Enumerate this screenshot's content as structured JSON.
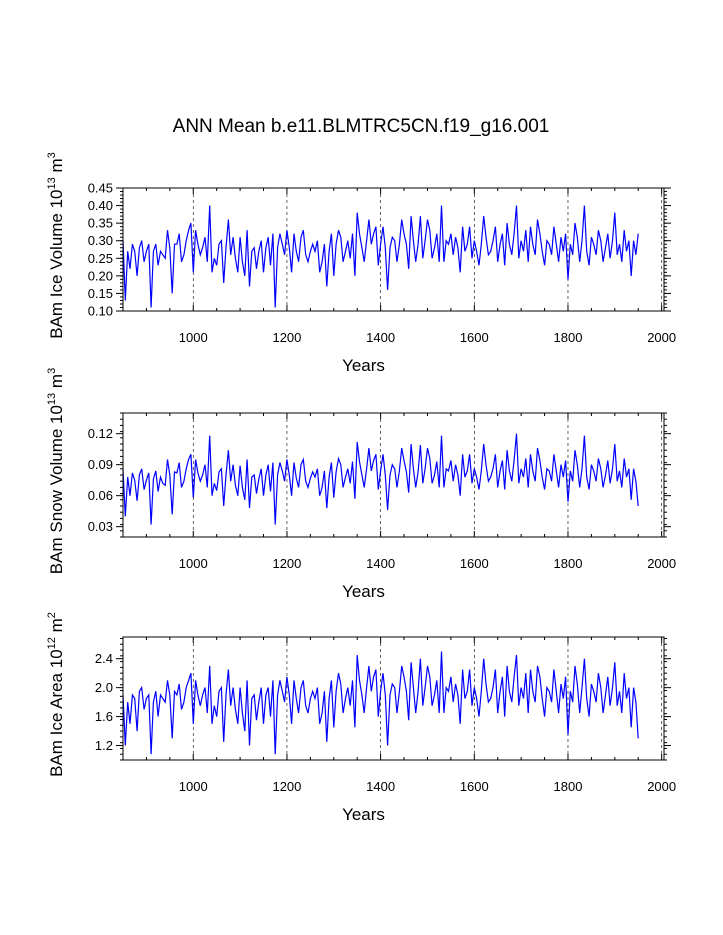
{
  "page": {
    "title": "ANN Mean b.e11.BLMTRC5CN.f19_g16.001"
  },
  "chart_data": [
    {
      "type": "line",
      "name": "ice-volume",
      "ylabel": "BAm Ice Volume 10",
      "ylabel_exp": "13",
      "ylabel_unit": "m",
      "ylabel_unit_exp": "3",
      "xlabel": "Years",
      "xlim": [
        850,
        2005
      ],
      "ylim": [
        0.1,
        0.45
      ],
      "x_ticks": [
        1000,
        1200,
        1400,
        1600,
        1800,
        2000
      ],
      "x_tick_labels": [
        "1000",
        "1200",
        "1400",
        "1600",
        "1800",
        "2000"
      ],
      "y_ticks": [
        0.1,
        0.15,
        0.2,
        0.25,
        0.3,
        0.35,
        0.4,
        0.45
      ],
      "y_tick_labels": [
        "0.10",
        "0.15",
        "0.20",
        "0.25",
        "0.30",
        "0.35",
        "0.40",
        "0.45"
      ],
      "grid_x": [
        1000,
        1200,
        1400,
        1600,
        1800,
        2000
      ],
      "series": [
        {
          "name": "BAm Ice Volume",
          "color": "#0000ff",
          "x_start": 850,
          "x_step": 5,
          "values": [
            0.3,
            0.13,
            0.27,
            0.22,
            0.29,
            0.27,
            0.2,
            0.28,
            0.3,
            0.24,
            0.27,
            0.29,
            0.11,
            0.27,
            0.29,
            0.23,
            0.27,
            0.26,
            0.25,
            0.33,
            0.28,
            0.15,
            0.29,
            0.29,
            0.32,
            0.24,
            0.26,
            0.3,
            0.33,
            0.35,
            0.21,
            0.33,
            0.29,
            0.26,
            0.28,
            0.31,
            0.24,
            0.4,
            0.21,
            0.25,
            0.23,
            0.29,
            0.3,
            0.18,
            0.28,
            0.36,
            0.26,
            0.31,
            0.25,
            0.21,
            0.31,
            0.24,
            0.2,
            0.33,
            0.17,
            0.27,
            0.28,
            0.22,
            0.27,
            0.3,
            0.21,
            0.28,
            0.31,
            0.23,
            0.32,
            0.11,
            0.28,
            0.32,
            0.29,
            0.26,
            0.33,
            0.28,
            0.21,
            0.32,
            0.27,
            0.24,
            0.31,
            0.33,
            0.26,
            0.24,
            0.27,
            0.29,
            0.27,
            0.3,
            0.21,
            0.24,
            0.29,
            0.17,
            0.27,
            0.32,
            0.2,
            0.29,
            0.33,
            0.31,
            0.24,
            0.27,
            0.3,
            0.25,
            0.32,
            0.2,
            0.38,
            0.32,
            0.28,
            0.24,
            0.3,
            0.36,
            0.29,
            0.32,
            0.34,
            0.23,
            0.29,
            0.34,
            0.28,
            0.16,
            0.28,
            0.31,
            0.3,
            0.24,
            0.29,
            0.36,
            0.32,
            0.29,
            0.22,
            0.37,
            0.3,
            0.24,
            0.29,
            0.37,
            0.25,
            0.3,
            0.36,
            0.33,
            0.25,
            0.28,
            0.32,
            0.24,
            0.4,
            0.24,
            0.3,
            0.29,
            0.32,
            0.26,
            0.31,
            0.28,
            0.21,
            0.34,
            0.27,
            0.29,
            0.34,
            0.25,
            0.3,
            0.27,
            0.23,
            0.29,
            0.37,
            0.31,
            0.26,
            0.27,
            0.3,
            0.34,
            0.24,
            0.29,
            0.32,
            0.23,
            0.35,
            0.29,
            0.26,
            0.32,
            0.4,
            0.25,
            0.3,
            0.27,
            0.33,
            0.24,
            0.34,
            0.29,
            0.26,
            0.36,
            0.32,
            0.27,
            0.23,
            0.3,
            0.29,
            0.26,
            0.34,
            0.29,
            0.24,
            0.31,
            0.27,
            0.32,
            0.19,
            0.29,
            0.26,
            0.35,
            0.31,
            0.24,
            0.3,
            0.4,
            0.27,
            0.23,
            0.31,
            0.29,
            0.26,
            0.33,
            0.3,
            0.24,
            0.28,
            0.32,
            0.25,
            0.3,
            0.38,
            0.26,
            0.29,
            0.24,
            0.33,
            0.27,
            0.3,
            0.2,
            0.3,
            0.26,
            0.32
          ]
        }
      ]
    },
    {
      "type": "line",
      "name": "snow-volume",
      "ylabel": "BAm Snow Volume 10",
      "ylabel_exp": "13",
      "ylabel_unit": "m",
      "ylabel_unit_exp": "3",
      "xlabel": "Years",
      "xlim": [
        850,
        2005
      ],
      "ylim": [
        0.02,
        0.14
      ],
      "x_ticks": [
        1000,
        1200,
        1400,
        1600,
        1800,
        2000
      ],
      "x_tick_labels": [
        "1000",
        "1200",
        "1400",
        "1600",
        "1800",
        "2000"
      ],
      "y_ticks": [
        0.03,
        0.06,
        0.09,
        0.12
      ],
      "y_tick_labels": [
        "0.03",
        "0.06",
        "0.09",
        "0.12"
      ],
      "grid_x": [
        1000,
        1200,
        1400,
        1600,
        1800,
        2000
      ],
      "series": [
        {
          "name": "BAm Snow Volume",
          "color": "#0000ff",
          "x_start": 850,
          "x_step": 5,
          "values": [
            0.085,
            0.04,
            0.078,
            0.06,
            0.082,
            0.075,
            0.055,
            0.08,
            0.086,
            0.066,
            0.075,
            0.082,
            0.032,
            0.076,
            0.084,
            0.064,
            0.078,
            0.072,
            0.07,
            0.095,
            0.08,
            0.042,
            0.083,
            0.082,
            0.092,
            0.068,
            0.074,
            0.086,
            0.095,
            0.1,
            0.058,
            0.095,
            0.082,
            0.074,
            0.08,
            0.09,
            0.068,
            0.118,
            0.06,
            0.072,
            0.065,
            0.083,
            0.086,
            0.05,
            0.08,
            0.104,
            0.074,
            0.09,
            0.07,
            0.06,
            0.089,
            0.068,
            0.056,
            0.095,
            0.048,
            0.078,
            0.08,
            0.062,
            0.076,
            0.086,
            0.06,
            0.08,
            0.09,
            0.064,
            0.092,
            0.032,
            0.08,
            0.092,
            0.084,
            0.074,
            0.095,
            0.08,
            0.06,
            0.092,
            0.077,
            0.068,
            0.09,
            0.095,
            0.074,
            0.068,
            0.077,
            0.083,
            0.078,
            0.086,
            0.06,
            0.068,
            0.084,
            0.048,
            0.078,
            0.092,
            0.058,
            0.083,
            0.096,
            0.09,
            0.068,
            0.078,
            0.086,
            0.072,
            0.093,
            0.057,
            0.112,
            0.093,
            0.08,
            0.068,
            0.086,
            0.106,
            0.084,
            0.094,
            0.1,
            0.066,
            0.084,
            0.1,
            0.08,
            0.046,
            0.08,
            0.09,
            0.086,
            0.068,
            0.084,
            0.106,
            0.094,
            0.083,
            0.063,
            0.11,
            0.086,
            0.068,
            0.083,
            0.109,
            0.072,
            0.086,
            0.106,
            0.096,
            0.072,
            0.08,
            0.093,
            0.068,
            0.118,
            0.068,
            0.086,
            0.084,
            0.094,
            0.074,
            0.09,
            0.08,
            0.06,
            0.1,
            0.078,
            0.084,
            0.1,
            0.072,
            0.086,
            0.078,
            0.066,
            0.084,
            0.11,
            0.09,
            0.074,
            0.078,
            0.086,
            0.1,
            0.068,
            0.084,
            0.094,
            0.066,
            0.104,
            0.084,
            0.074,
            0.094,
            0.12,
            0.072,
            0.086,
            0.078,
            0.096,
            0.068,
            0.1,
            0.084,
            0.074,
            0.106,
            0.094,
            0.078,
            0.066,
            0.086,
            0.084,
            0.074,
            0.1,
            0.084,
            0.068,
            0.09,
            0.078,
            0.094,
            0.054,
            0.084,
            0.074,
            0.104,
            0.09,
            0.068,
            0.086,
            0.118,
            0.078,
            0.066,
            0.09,
            0.084,
            0.074,
            0.096,
            0.086,
            0.068,
            0.08,
            0.094,
            0.072,
            0.086,
            0.11,
            0.074,
            0.084,
            0.068,
            0.096,
            0.078,
            0.086,
            0.056,
            0.086,
            0.074,
            0.05
          ]
        }
      ]
    },
    {
      "type": "line",
      "name": "ice-area",
      "ylabel": "BAm Ice Area 10",
      "ylabel_exp": "12",
      "ylabel_unit": "m",
      "ylabel_unit_exp": "2",
      "xlabel": "Years",
      "xlim": [
        850,
        2005
      ],
      "ylim": [
        1.0,
        2.7
      ],
      "x_ticks": [
        1000,
        1200,
        1400,
        1600,
        1800,
        2000
      ],
      "x_tick_labels": [
        "1000",
        "1200",
        "1400",
        "1600",
        "1800",
        "2000"
      ],
      "y_ticks": [
        1.2,
        1.6,
        2.0,
        2.4
      ],
      "y_tick_labels": [
        "1.2",
        "1.6",
        "2.0",
        "2.4"
      ],
      "grid_x": [
        1000,
        1200,
        1400,
        1600,
        1800,
        2000
      ],
      "series": [
        {
          "name": "BAm Ice Area",
          "color": "#0000ff",
          "x_start": 850,
          "x_step": 5,
          "values": [
            1.9,
            1.2,
            1.8,
            1.5,
            1.9,
            1.85,
            1.4,
            1.95,
            2.0,
            1.7,
            1.85,
            1.9,
            1.08,
            1.8,
            1.95,
            1.6,
            1.9,
            1.85,
            1.8,
            2.1,
            1.9,
            1.3,
            1.95,
            1.9,
            2.05,
            1.7,
            1.8,
            2.0,
            2.1,
            2.2,
            1.5,
            2.1,
            1.9,
            1.75,
            1.9,
            2.0,
            1.65,
            2.3,
            1.5,
            1.75,
            1.6,
            1.95,
            2.0,
            1.25,
            1.9,
            2.25,
            1.75,
            2.0,
            1.7,
            1.5,
            2.0,
            1.65,
            1.4,
            2.1,
            1.2,
            1.85,
            1.9,
            1.55,
            1.8,
            2.0,
            1.5,
            1.9,
            2.0,
            1.6,
            2.1,
            1.08,
            1.9,
            2.1,
            1.95,
            1.8,
            2.15,
            1.9,
            1.5,
            2.1,
            1.85,
            1.65,
            2.0,
            2.1,
            1.75,
            1.65,
            1.85,
            1.95,
            1.85,
            2.0,
            1.5,
            1.65,
            1.95,
            1.25,
            1.85,
            2.1,
            1.45,
            1.95,
            2.2,
            2.05,
            1.65,
            1.85,
            2.0,
            1.75,
            2.1,
            1.45,
            2.45,
            2.1,
            1.9,
            1.65,
            2.0,
            2.3,
            1.95,
            2.15,
            2.25,
            1.6,
            1.95,
            2.2,
            1.9,
            1.2,
            1.9,
            2.05,
            2.0,
            1.65,
            1.95,
            2.3,
            2.15,
            1.95,
            1.55,
            2.35,
            2.0,
            1.65,
            1.95,
            2.4,
            1.75,
            2.0,
            2.3,
            2.15,
            1.75,
            1.9,
            2.1,
            1.65,
            2.5,
            1.65,
            2.0,
            1.95,
            2.15,
            1.8,
            2.05,
            1.9,
            1.5,
            2.25,
            1.85,
            1.95,
            2.25,
            1.75,
            2.0,
            1.85,
            1.6,
            1.95,
            2.4,
            2.05,
            1.8,
            1.85,
            2.0,
            2.25,
            1.65,
            1.95,
            2.15,
            1.6,
            2.3,
            1.95,
            1.8,
            2.15,
            2.45,
            1.75,
            2.0,
            1.85,
            2.2,
            1.65,
            2.25,
            1.95,
            1.8,
            2.3,
            2.15,
            1.85,
            1.6,
            2.0,
            1.95,
            1.8,
            2.25,
            1.95,
            1.65,
            2.05,
            1.85,
            2.15,
            1.35,
            1.95,
            1.8,
            2.3,
            2.05,
            1.65,
            2.0,
            2.4,
            1.85,
            1.6,
            2.05,
            1.95,
            1.8,
            2.2,
            2.0,
            1.65,
            1.9,
            2.15,
            1.75,
            2.0,
            2.35,
            1.75,
            1.95,
            1.65,
            2.2,
            1.85,
            2.0,
            1.45,
            2.0,
            1.8,
            1.3
          ]
        }
      ]
    }
  ]
}
